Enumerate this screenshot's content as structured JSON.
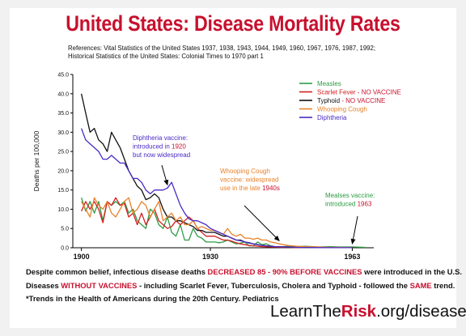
{
  "header": {
    "title": "United States: Disease Mortality Rates",
    "refs_line1": "References: Vital Statistics of the United States 1937, 1938, 1943, 1944, 1949, 1960, 1967, 1976, 1987, 1992;",
    "refs_line2": "Historical Statistics of the United States: Colonial Times to 1970 part 1"
  },
  "colors": {
    "brand_red": "#c8102e",
    "measles": "#2e9b45",
    "scarlet": "#d42020",
    "typhoid": "#111111",
    "whooping": "#e8822a",
    "diphtheria": "#4b2bc4"
  },
  "chart_data": {
    "type": "line",
    "ylabel": "Deaths per 100,000",
    "xlabel": "",
    "xlim": [
      1898,
      1968
    ],
    "ylim": [
      0,
      45
    ],
    "yticks": [
      "0.0",
      "5.0",
      "10.0",
      "15.0",
      "20.0",
      "25.0",
      "30.0",
      "35.0",
      "40.0",
      "45.0"
    ],
    "xticks": [
      {
        "value": 1900,
        "label": "1900"
      },
      {
        "value": 1930,
        "label": "1930"
      },
      {
        "value": 1963,
        "label": "1963"
      }
    ],
    "grid": false,
    "legend": "top-right",
    "series": [
      {
        "name": "Measles",
        "color": "#2e9b45",
        "points": [
          [
            1900,
            13
          ],
          [
            1901,
            9.5
          ],
          [
            1902,
            12
          ],
          [
            1903,
            9
          ],
          [
            1904,
            12
          ],
          [
            1905,
            7
          ],
          [
            1906,
            12
          ],
          [
            1907,
            11
          ],
          [
            1908,
            12
          ],
          [
            1909,
            11
          ],
          [
            1910,
            12
          ],
          [
            1911,
            9
          ],
          [
            1912,
            10
          ],
          [
            1913,
            7
          ],
          [
            1914,
            6
          ],
          [
            1915,
            5
          ],
          [
            1916,
            10
          ],
          [
            1917,
            9
          ],
          [
            1918,
            6
          ],
          [
            1919,
            5
          ],
          [
            1920,
            8
          ],
          [
            1921,
            4
          ],
          [
            1922,
            3
          ],
          [
            1923,
            6
          ],
          [
            1924,
            2
          ],
          [
            1925,
            2
          ],
          [
            1926,
            5
          ],
          [
            1927,
            3
          ],
          [
            1928,
            2.5
          ],
          [
            1929,
            1.5
          ],
          [
            1930,
            1.5
          ],
          [
            1931,
            1.5
          ],
          [
            1932,
            1.3
          ],
          [
            1933,
            1.5
          ],
          [
            1934,
            2
          ],
          [
            1935,
            1.5
          ],
          [
            1936,
            1
          ],
          [
            1937,
            1.2
          ],
          [
            1938,
            1.5
          ],
          [
            1939,
            0.5
          ],
          [
            1940,
            0.5
          ],
          [
            1941,
            1.5
          ],
          [
            1942,
            0.8
          ],
          [
            1943,
            1
          ],
          [
            1944,
            0.5
          ],
          [
            1945,
            0.3
          ],
          [
            1946,
            0.3
          ],
          [
            1947,
            0.3
          ],
          [
            1948,
            0.4
          ],
          [
            1949,
            0.4
          ],
          [
            1950,
            0.3
          ],
          [
            1952,
            0.4
          ],
          [
            1955,
            0.2
          ],
          [
            1958,
            0.3
          ],
          [
            1960,
            0.2
          ],
          [
            1963,
            0.2
          ],
          [
            1966,
            0.1
          ]
        ]
      },
      {
        "name": "Scarlet Fever - NO VACCINE",
        "color": "#d42020",
        "points": [
          [
            1900,
            9.5
          ],
          [
            1901,
            12
          ],
          [
            1902,
            10
          ],
          [
            1903,
            12
          ],
          [
            1904,
            10
          ],
          [
            1905,
            6.5
          ],
          [
            1906,
            12
          ],
          [
            1907,
            11
          ],
          [
            1908,
            13
          ],
          [
            1909,
            11
          ],
          [
            1910,
            11.5
          ],
          [
            1911,
            8
          ],
          [
            1912,
            9
          ],
          [
            1913,
            6
          ],
          [
            1914,
            9
          ],
          [
            1915,
            6
          ],
          [
            1916,
            8
          ],
          [
            1917,
            10
          ],
          [
            1918,
            7
          ],
          [
            1919,
            6
          ],
          [
            1920,
            5
          ],
          [
            1921,
            5.5
          ],
          [
            1922,
            7
          ],
          [
            1923,
            6
          ],
          [
            1924,
            7
          ],
          [
            1925,
            8
          ],
          [
            1926,
            7
          ],
          [
            1927,
            5
          ],
          [
            1928,
            4
          ],
          [
            1929,
            3
          ],
          [
            1930,
            3
          ],
          [
            1931,
            3
          ],
          [
            1932,
            2.5
          ],
          [
            1933,
            2
          ],
          [
            1934,
            2
          ],
          [
            1935,
            1.7
          ],
          [
            1936,
            1.3
          ],
          [
            1937,
            1
          ],
          [
            1938,
            0.8
          ],
          [
            1939,
            0.6
          ],
          [
            1940,
            0.5
          ],
          [
            1941,
            0.4
          ],
          [
            1942,
            0.3
          ],
          [
            1944,
            0.2
          ],
          [
            1946,
            0.1
          ],
          [
            1948,
            0.1
          ],
          [
            1950,
            0.05
          ],
          [
            1955,
            0.03
          ],
          [
            1960,
            0.02
          ],
          [
            1963,
            0.02
          ]
        ]
      },
      {
        "name": "Typhoid - NO VACCINE",
        "color": "#111111",
        "points": [
          [
            1900,
            40
          ],
          [
            1901,
            35
          ],
          [
            1902,
            30
          ],
          [
            1903,
            31
          ],
          [
            1904,
            28
          ],
          [
            1905,
            27
          ],
          [
            1906,
            25
          ],
          [
            1907,
            30
          ],
          [
            1908,
            28
          ],
          [
            1909,
            26
          ],
          [
            1910,
            23
          ],
          [
            1911,
            20
          ],
          [
            1912,
            18
          ],
          [
            1913,
            16
          ],
          [
            1914,
            15
          ],
          [
            1915,
            12.5
          ],
          [
            1916,
            13
          ],
          [
            1917,
            14
          ],
          [
            1918,
            13
          ],
          [
            1919,
            10
          ],
          [
            1920,
            8
          ],
          [
            1921,
            8
          ],
          [
            1922,
            7
          ],
          [
            1923,
            7
          ],
          [
            1924,
            6.5
          ],
          [
            1925,
            6
          ],
          [
            1926,
            5.5
          ],
          [
            1927,
            4.5
          ],
          [
            1928,
            4.5
          ],
          [
            1929,
            4
          ],
          [
            1930,
            4
          ],
          [
            1931,
            4
          ],
          [
            1932,
            3.5
          ],
          [
            1933,
            3
          ],
          [
            1934,
            3
          ],
          [
            1935,
            2.5
          ],
          [
            1936,
            2
          ],
          [
            1937,
            2
          ],
          [
            1938,
            1.5
          ],
          [
            1939,
            1.3
          ],
          [
            1940,
            1
          ],
          [
            1941,
            0.8
          ],
          [
            1942,
            0.6
          ],
          [
            1943,
            0.5
          ],
          [
            1944,
            0.4
          ],
          [
            1945,
            0.3
          ],
          [
            1947,
            0.2
          ],
          [
            1950,
            0.1
          ],
          [
            1955,
            0.05
          ],
          [
            1960,
            0.02
          ],
          [
            1963,
            0.02
          ]
        ]
      },
      {
        "name": "Whooping Cough",
        "color": "#e8822a",
        "points": [
          [
            1900,
            12
          ],
          [
            1901,
            10
          ],
          [
            1902,
            8
          ],
          [
            1903,
            13
          ],
          [
            1904,
            11
          ],
          [
            1905,
            10
          ],
          [
            1906,
            12
          ],
          [
            1907,
            9
          ],
          [
            1908,
            8
          ],
          [
            1909,
            10
          ],
          [
            1910,
            12
          ],
          [
            1911,
            13
          ],
          [
            1912,
            9
          ],
          [
            1913,
            10
          ],
          [
            1914,
            12
          ],
          [
            1915,
            11
          ],
          [
            1916,
            8
          ],
          [
            1917,
            10
          ],
          [
            1918,
            12
          ],
          [
            1919,
            7
          ],
          [
            1920,
            8
          ],
          [
            1921,
            9
          ],
          [
            1922,
            7
          ],
          [
            1923,
            8
          ],
          [
            1924,
            6
          ],
          [
            1925,
            6
          ],
          [
            1926,
            7
          ],
          [
            1927,
            5
          ],
          [
            1928,
            5.5
          ],
          [
            1929,
            5
          ],
          [
            1930,
            4.5
          ],
          [
            1931,
            4.5
          ],
          [
            1932,
            4
          ],
          [
            1933,
            3.5
          ],
          [
            1934,
            5
          ],
          [
            1935,
            3.5
          ],
          [
            1936,
            3
          ],
          [
            1937,
            3.5
          ],
          [
            1938,
            2.5
          ],
          [
            1939,
            2.5
          ],
          [
            1940,
            2.2
          ],
          [
            1941,
            2.5
          ],
          [
            1942,
            2
          ],
          [
            1943,
            2
          ],
          [
            1944,
            1.5
          ],
          [
            1945,
            1.3
          ],
          [
            1946,
            1
          ],
          [
            1947,
            0.8
          ],
          [
            1948,
            0.6
          ],
          [
            1949,
            0.5
          ],
          [
            1950,
            0.4
          ],
          [
            1952,
            0.3
          ],
          [
            1955,
            0.2
          ],
          [
            1958,
            0.1
          ],
          [
            1960,
            0.1
          ],
          [
            1963,
            0.05
          ]
        ]
      },
      {
        "name": "Diphtheria",
        "color": "#4b2bc4",
        "points": [
          [
            1900,
            31
          ],
          [
            1901,
            28
          ],
          [
            1902,
            27
          ],
          [
            1903,
            26
          ],
          [
            1904,
            25
          ],
          [
            1905,
            23
          ],
          [
            1906,
            23
          ],
          [
            1907,
            24
          ],
          [
            1908,
            23
          ],
          [
            1909,
            22
          ],
          [
            1910,
            22
          ],
          [
            1911,
            20
          ],
          [
            1912,
            18
          ],
          [
            1913,
            18
          ],
          [
            1914,
            17
          ],
          [
            1915,
            15
          ],
          [
            1916,
            14
          ],
          [
            1917,
            15
          ],
          [
            1918,
            15
          ],
          [
            1919,
            15
          ],
          [
            1920,
            15.5
          ],
          [
            1921,
            17
          ],
          [
            1922,
            14
          ],
          [
            1923,
            11
          ],
          [
            1924,
            9
          ],
          [
            1925,
            7.5
          ],
          [
            1926,
            7
          ],
          [
            1927,
            7
          ],
          [
            1928,
            6.5
          ],
          [
            1929,
            6
          ],
          [
            1930,
            5
          ],
          [
            1931,
            4.5
          ],
          [
            1932,
            4
          ],
          [
            1933,
            3.5
          ],
          [
            1934,
            3
          ],
          [
            1935,
            2.5
          ],
          [
            1936,
            2
          ],
          [
            1937,
            1.8
          ],
          [
            1938,
            1.5
          ],
          [
            1939,
            1.2
          ],
          [
            1940,
            1
          ],
          [
            1941,
            0.8
          ],
          [
            1942,
            0.6
          ],
          [
            1943,
            0.5
          ],
          [
            1944,
            0.4
          ],
          [
            1945,
            0.3
          ],
          [
            1948,
            0.2
          ],
          [
            1950,
            0.1
          ],
          [
            1955,
            0.05
          ],
          [
            1960,
            0.02
          ],
          [
            1963,
            0.02
          ]
        ]
      }
    ],
    "annotations": [
      {
        "id": "diphtheria",
        "color": "#4b2bc4",
        "lines": [
          [
            {
              "t": "Diphtheria vaccine:"
            }
          ],
          [
            {
              "t": "introduced in "
            },
            {
              "t": "1920",
              "red": true
            }
          ],
          [
            {
              "t": "but now widespread"
            }
          ]
        ],
        "arrow_to": {
          "x": 1920,
          "y": 15.5
        }
      },
      {
        "id": "whooping",
        "color": "#e8822a",
        "lines": [
          [
            {
              "t": "Whooping Cough"
            }
          ],
          [
            {
              "t": "vaccine: widespread"
            }
          ],
          [
            {
              "t": "use in the late "
            },
            {
              "t": "1940s",
              "red": true
            }
          ]
        ],
        "arrow_to": {
          "x": 1946,
          "y": 1
        }
      },
      {
        "id": "measles",
        "color": "#2e9b45",
        "lines": [
          [
            {
              "t": "Mealses vaccine:"
            }
          ],
          [
            {
              "t": "introduced "
            },
            {
              "t": "1963",
              "red": true
            }
          ]
        ],
        "arrow_to": {
          "x": 1963,
          "y": 0.2
        }
      }
    ]
  },
  "footer": {
    "l1_a": "Despite common belief, infectious disease deaths ",
    "l1_b": "DECREASED 85 - 90% BEFORE VACCINES",
    "l1_c": " were introduced in the U.S.",
    "l2_a": "Diseases ",
    "l2_b": "WITHOUT VACCINES",
    "l2_c": " - including Scarlet Fever, Tuberculosis, Cholera and Typhoid - followed the ",
    "l2_d": "SAME",
    "l2_e": " trend.",
    "l3": "*Trends in the Health of Americans during the 20th Century. Pediatrics",
    "brand_a": "LearnThe",
    "brand_b": "Risk",
    "brand_c": ".org/diseases"
  }
}
